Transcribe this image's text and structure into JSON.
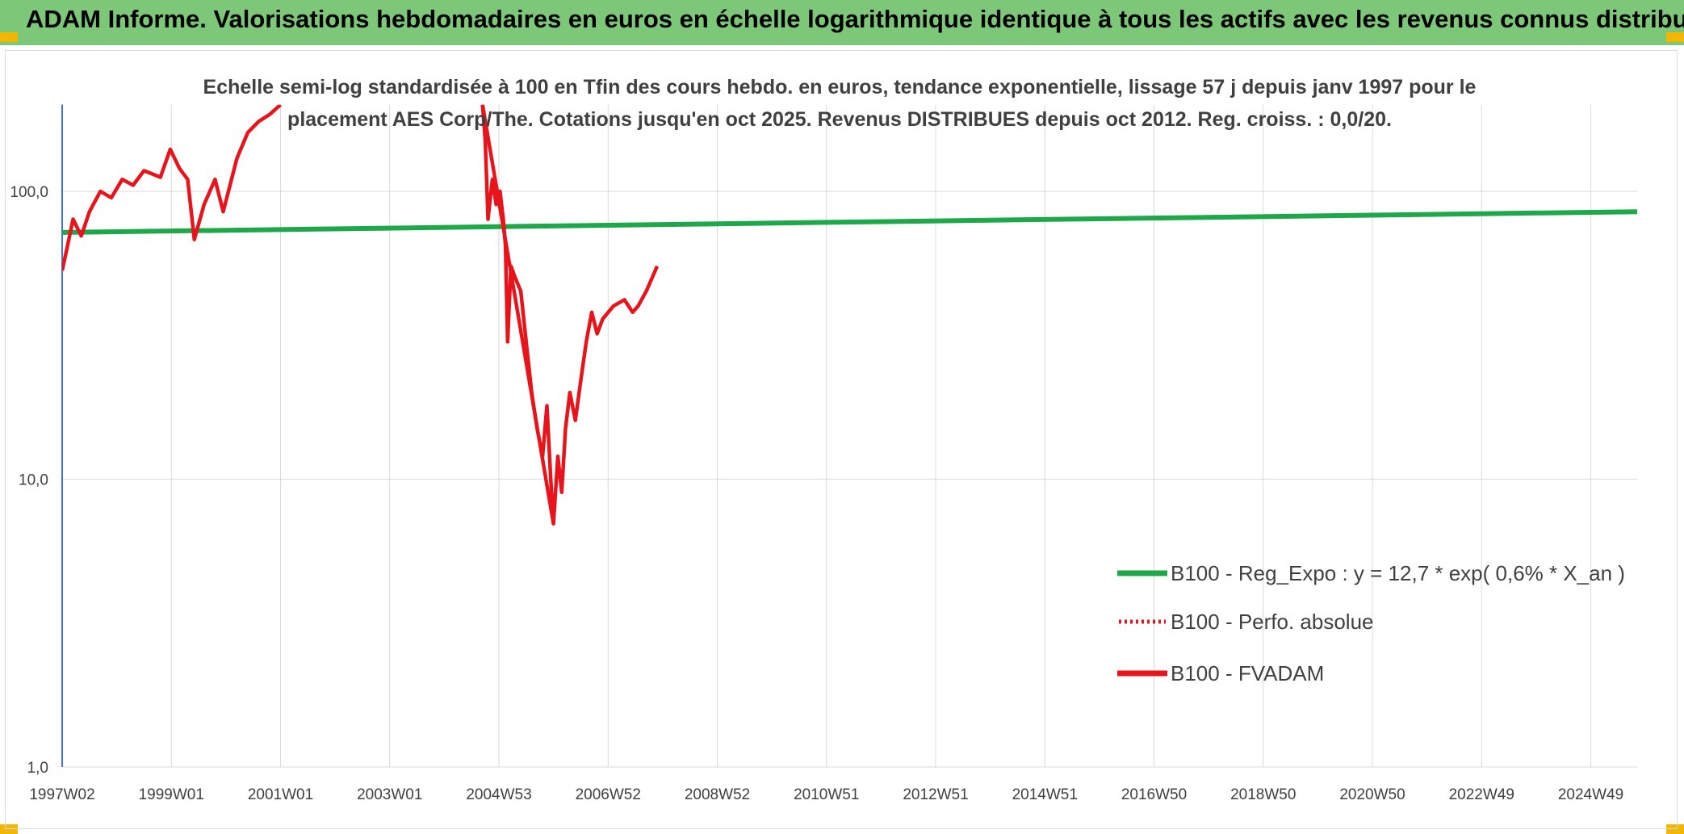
{
  "header": {
    "title": "ADAM Informe. Valorisations hebdomadaires en euros en échelle logarithmique identique à tous les actifs avec les revenus connus distribués"
  },
  "colors": {
    "header_bg": "#7dc878",
    "corner": "#f2b705",
    "trend": "#1ea84a",
    "fvadam": "#e8141b",
    "perfo": "#e8141b"
  },
  "chart_data": {
    "type": "line",
    "title": "Echelle semi-log standardisée à 100 en Tfin des cours hebdo. en euros, tendance exponentielle, lissage 57 j depuis janv 1997 pour le",
    "subtitle": "placement AES Corp/The. Cotations jusqu'en oct 2025. Revenus DISTRIBUES depuis oct 2012. Reg. croiss. : 0,0/20.",
    "xlabel": "",
    "ylabel": "",
    "y_scale": "log",
    "ylim": [
      1,
      200
    ],
    "xlim": [
      1997.0,
      2025.85
    ],
    "grid": "vertical",
    "legend_position": "lower-right",
    "y_ticks": [
      {
        "value": 1,
        "label": "1,0"
      },
      {
        "value": 10,
        "label": "10,0"
      },
      {
        "value": 100,
        "label": "100,0"
      }
    ],
    "x_ticks": [
      {
        "value": 1997.0,
        "label": "1997W02"
      },
      {
        "value": 1999.0,
        "label": "1999W01"
      },
      {
        "value": 2001.0,
        "label": "2001W01"
      },
      {
        "value": 2003.0,
        "label": "2003W01"
      },
      {
        "value": 2005.0,
        "label": "2004W53"
      },
      {
        "value": 2007.0,
        "label": "2006W52"
      },
      {
        "value": 2009.0,
        "label": "2008W52"
      },
      {
        "value": 2011.0,
        "label": "2010W51"
      },
      {
        "value": 2013.0,
        "label": "2012W51"
      },
      {
        "value": 2015.0,
        "label": "2014W51"
      },
      {
        "value": 2017.0,
        "label": "2016W50"
      },
      {
        "value": 2019.0,
        "label": "2018W50"
      },
      {
        "value": 2021.0,
        "label": "2020W50"
      },
      {
        "value": 2023.0,
        "label": "2022W49"
      },
      {
        "value": 2025.0,
        "label": "2024W49"
      }
    ],
    "series": [
      {
        "name": "B100 - Reg_Expo : y = 12,7 * exp( 0,6% *  X_an )",
        "style": "solid-green",
        "points": [
          [
            1997.0,
            72
          ],
          [
            2025.85,
            85
          ]
        ]
      },
      {
        "name": "B100 - Perfo. absolue",
        "style": "dotted-red",
        "points": []
      },
      {
        "name": "B100 - FVADAM",
        "style": "solid-red",
        "segments": [
          [
            [
              1997.0,
              53
            ],
            [
              1997.1,
              65
            ],
            [
              1997.2,
              80
            ],
            [
              1997.35,
              70
            ],
            [
              1997.5,
              85
            ],
            [
              1997.7,
              100
            ],
            [
              1997.9,
              95
            ],
            [
              1998.1,
              110
            ],
            [
              1998.3,
              105
            ],
            [
              1998.5,
              118
            ],
            [
              1998.8,
              112
            ],
            [
              1998.98,
              140
            ],
            [
              1999.15,
              120
            ],
            [
              1999.3,
              110
            ],
            [
              1999.42,
              68
            ],
            [
              1999.6,
              90
            ],
            [
              1999.8,
              110
            ],
            [
              1999.95,
              85
            ],
            [
              2000.2,
              130
            ],
            [
              2000.4,
              160
            ],
            [
              2000.6,
              175
            ],
            [
              2000.8,
              185
            ],
            [
              2001.0,
              200
            ]
          ],
          [
            [
              2004.7,
              200
            ],
            [
              2004.75,
              150
            ],
            [
              2004.8,
              80
            ],
            [
              2004.88,
              110
            ],
            [
              2004.95,
              90
            ],
            [
              2005.02,
              100
            ],
            [
              2005.08,
              80
            ],
            [
              2005.12,
              65
            ],
            [
              2005.16,
              30
            ],
            [
              2005.22,
              55
            ],
            [
              2005.3,
              50
            ],
            [
              2005.4,
              45
            ],
            [
              2005.5,
              30
            ],
            [
              2005.6,
              20
            ],
            [
              2005.7,
              15
            ],
            [
              2005.8,
              12
            ],
            [
              2005.88,
              18
            ],
            [
              2005.95,
              10
            ],
            [
              2006.0,
              7
            ],
            [
              2006.08,
              12
            ],
            [
              2006.15,
              9
            ],
            [
              2006.22,
              15
            ],
            [
              2006.3,
              20
            ],
            [
              2006.4,
              16
            ],
            [
              2006.5,
              22
            ],
            [
              2006.6,
              30
            ],
            [
              2006.7,
              38
            ],
            [
              2006.8,
              32
            ],
            [
              2006.9,
              36
            ],
            [
              2007.1,
              40
            ],
            [
              2007.3,
              42
            ],
            [
              2007.45,
              38
            ],
            [
              2007.55,
              40
            ],
            [
              2007.7,
              45
            ],
            [
              2007.9,
              55
            ]
          ],
          [
            [
              2004.7,
              200
            ],
            [
              2006.0,
              7
            ]
          ]
        ]
      }
    ]
  }
}
